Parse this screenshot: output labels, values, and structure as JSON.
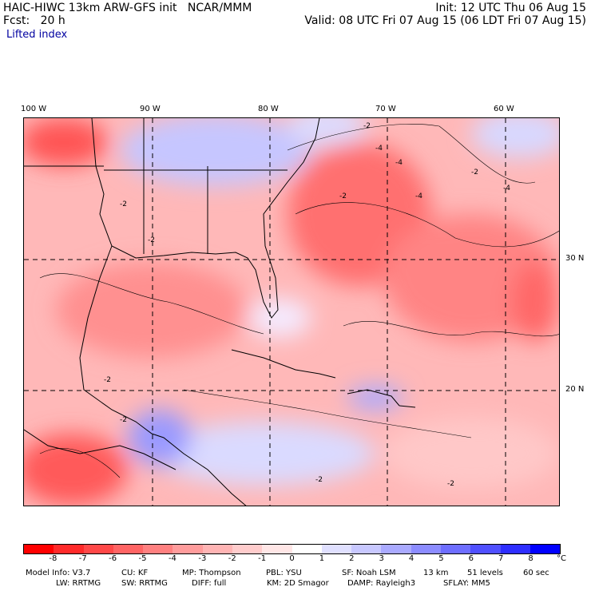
{
  "header": {
    "left_line1": "HAIC-HIWC 13km ARW-GFS init   NCAR/MMM",
    "left_line2": "Fcst:   20 h",
    "right_line1": "Init: 12 UTC Thu 06 Aug 15",
    "right_line2": "Valid: 08 UTC Fri 07 Aug 15 (06 LDT Fri 07 Aug 15)",
    "field_name": "Lifted index"
  },
  "map": {
    "lon_labels": [
      "100 W",
      "90 W",
      "80 W",
      "70 W",
      "60 W"
    ],
    "lat_labels": [
      "30 N",
      "20 N"
    ],
    "contour_labels": [
      "-2",
      "-2",
      "-2",
      "-2",
      "-2",
      "-2",
      "-2",
      "-4",
      "-4",
      "-4",
      "-4",
      "-2",
      "-2"
    ]
  },
  "colorbar": {
    "colors": [
      "#ff0000",
      "#ff2a2a",
      "#ff4848",
      "#ff6464",
      "#ff8080",
      "#ff9c9c",
      "#ffb4b4",
      "#ffcccc",
      "#ffe6e6",
      "#ffffff",
      "#e0e0ff",
      "#c8c8ff",
      "#aaaaff",
      "#8c8cff",
      "#6e6eff",
      "#5050ff",
      "#2e2eff",
      "#0000ff"
    ],
    "ticks": [
      "-8",
      "-7",
      "-6",
      "-5",
      "-4",
      "-3",
      "-2",
      "-1",
      "0",
      "1",
      "2",
      "3",
      "4",
      "5",
      "6",
      "7",
      "8"
    ],
    "unit": "°C"
  },
  "footer": {
    "line1": [
      "Model Info: V3.7",
      "CU: KF",
      "MP: Thompson",
      "PBL: YSU",
      "SF: Noah LSM",
      "13 km",
      "51 levels",
      "60 sec"
    ],
    "line2": [
      "LW: RRTMG",
      "SW: RRTMG",
      "DIFF: full",
      "KM: 2D Smagor",
      "DAMP: Rayleigh3",
      "SFLAY: MM5"
    ]
  }
}
